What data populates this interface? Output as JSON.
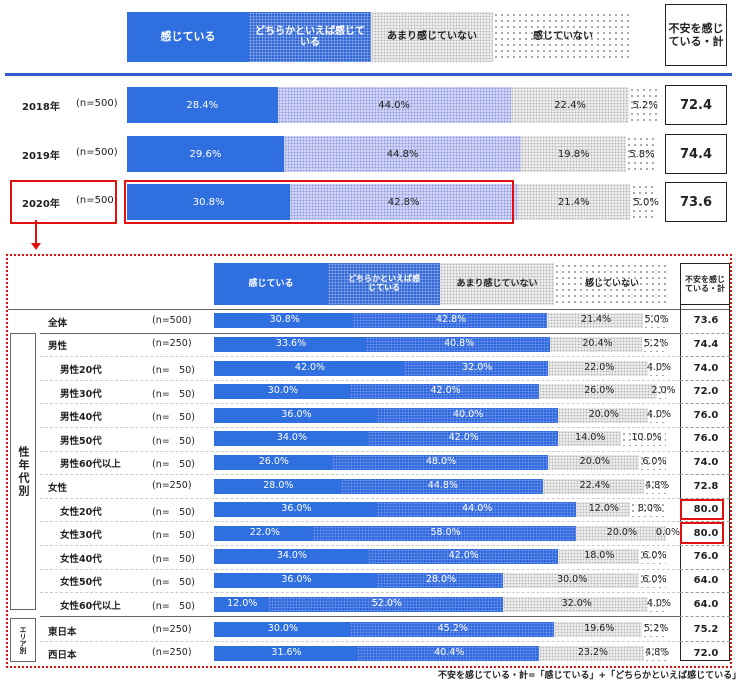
{
  "colors": {
    "solid": "#2f6fe0",
    "blue_dotted": "#2a62dc",
    "lavender": "#d4d8f6",
    "light_gray": "#f0f0f0",
    "highlight": "#e01010"
  },
  "legend": [
    "感じている",
    "どちらかといえば感じている",
    "あまり感じていない",
    "感じていない"
  ],
  "total_header": "不安を感じている・計",
  "footnote": "不安を感じている・計=「感じている」+「どちらかといえば感じている」",
  "group_labels": {
    "gender_age": "性年代別",
    "area": "エリア別"
  },
  "chart_data": [
    {
      "type": "bar",
      "orientation": "horizontal",
      "stacked": true,
      "unit": "%",
      "series_names": [
        "感じている",
        "どちらかといえば感じている",
        "あまり感じていない",
        "感じていない"
      ],
      "total_label": "不安を感じている・計",
      "rows": [
        {
          "label": "2018年",
          "n": "(n=500)",
          "values": [
            28.4,
            44.0,
            22.4,
            5.2
          ],
          "total": "72.4",
          "highlight": false
        },
        {
          "label": "2019年",
          "n": "(n=500)",
          "values": [
            29.6,
            44.8,
            19.8,
            5.8
          ],
          "total": "74.4",
          "highlight": false
        },
        {
          "label": "2020年",
          "n": "(n=500)",
          "values": [
            30.8,
            42.8,
            21.4,
            5.0
          ],
          "total": "73.6",
          "highlight": true
        }
      ]
    },
    {
      "type": "bar",
      "orientation": "horizontal",
      "stacked": true,
      "unit": "%",
      "series_names": [
        "感じている",
        "どちらかといえば感じている",
        "あまり感じていない",
        "感じていない"
      ],
      "total_label": "不安を感じている・計",
      "rows": [
        {
          "label": "全体",
          "n": "(n=500)",
          "values": [
            30.8,
            42.8,
            21.4,
            5.0
          ],
          "total": "73.6",
          "indent": false
        },
        {
          "label": "男性",
          "n": "(n=250)",
          "values": [
            33.6,
            40.8,
            20.4,
            5.2
          ],
          "total": "74.4",
          "indent": false
        },
        {
          "label": "男性20代",
          "n": "(n=　50)",
          "values": [
            42.0,
            32.0,
            22.0,
            4.0
          ],
          "total": "74.0",
          "indent": true
        },
        {
          "label": "男性30代",
          "n": "(n=　50)",
          "values": [
            30.0,
            42.0,
            26.0,
            2.0
          ],
          "total": "72.0",
          "indent": true
        },
        {
          "label": "男性40代",
          "n": "(n=　50)",
          "values": [
            36.0,
            40.0,
            20.0,
            4.0
          ],
          "total": "76.0",
          "indent": true
        },
        {
          "label": "男性50代",
          "n": "(n=　50)",
          "values": [
            34.0,
            42.0,
            14.0,
            10.0
          ],
          "total": "76.0",
          "indent": true
        },
        {
          "label": "男性60代以上",
          "n": "(n=　50)",
          "values": [
            26.0,
            48.0,
            20.0,
            6.0
          ],
          "total": "74.0",
          "indent": true
        },
        {
          "label": "女性",
          "n": "(n=250)",
          "values": [
            28.0,
            44.8,
            22.4,
            4.8
          ],
          "total": "72.8",
          "indent": false
        },
        {
          "label": "女性20代",
          "n": "(n=　50)",
          "values": [
            36.0,
            44.0,
            12.0,
            8.0
          ],
          "total": "80.0",
          "indent": true,
          "highlight": true
        },
        {
          "label": "女性30代",
          "n": "(n=　50)",
          "values": [
            22.0,
            58.0,
            20.0,
            0.0
          ],
          "total": "80.0",
          "indent": true,
          "highlight": true
        },
        {
          "label": "女性40代",
          "n": "(n=　50)",
          "values": [
            34.0,
            42.0,
            18.0,
            6.0
          ],
          "total": "76.0",
          "indent": true
        },
        {
          "label": "女性50代",
          "n": "(n=　50)",
          "values": [
            36.0,
            28.0,
            30.0,
            6.0
          ],
          "total": "64.0",
          "indent": true
        },
        {
          "label": "女性60代以上",
          "n": "(n=　50)",
          "values": [
            12.0,
            52.0,
            32.0,
            4.0
          ],
          "total": "64.0",
          "indent": true
        },
        {
          "label": "東日本",
          "n": "(n=250)",
          "values": [
            30.0,
            45.2,
            19.6,
            5.2
          ],
          "total": "75.2",
          "indent": false
        },
        {
          "label": "西日本",
          "n": "(n=250)",
          "values": [
            31.6,
            40.4,
            23.2,
            4.8
          ],
          "total": "72.0",
          "indent": false
        }
      ]
    }
  ]
}
